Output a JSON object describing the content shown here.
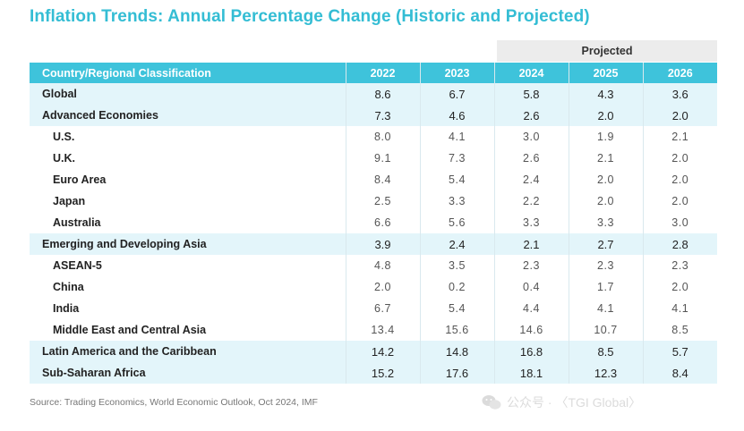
{
  "title": "Inflation Trends: Annual Percentage Change (Historic and Projected)",
  "projected_label": "Projected",
  "table": {
    "header": {
      "label": "Country/Regional Classification",
      "years": [
        "2022",
        "2023",
        "2024",
        "2025",
        "2026"
      ]
    },
    "rows": [
      {
        "label": "Global",
        "values": [
          "8.6",
          "6.7",
          "5.8",
          "4.3",
          "3.6"
        ],
        "level": "group"
      },
      {
        "label": "Advanced Economies",
        "values": [
          "7.3",
          "4.6",
          "2.6",
          "2.0",
          "2.0"
        ],
        "level": "group"
      },
      {
        "label": "U.S.",
        "values": [
          "8.0",
          "4.1",
          "3.0",
          "1.9",
          "2.1"
        ],
        "level": "sub"
      },
      {
        "label": "U.K.",
        "values": [
          "9.1",
          "7.3",
          "2.6",
          "2.1",
          "2.0"
        ],
        "level": "sub"
      },
      {
        "label": "Euro Area",
        "values": [
          "8.4",
          "5.4",
          "2.4",
          "2.0",
          "2.0"
        ],
        "level": "sub"
      },
      {
        "label": "Japan",
        "values": [
          "2.5",
          "3.3",
          "2.2",
          "2.0",
          "2.0"
        ],
        "level": "sub"
      },
      {
        "label": "Australia",
        "values": [
          "6.6",
          "5.6",
          "3.3",
          "3.3",
          "3.0"
        ],
        "level": "sub"
      },
      {
        "label": "Emerging and Developing Asia",
        "values": [
          "3.9",
          "2.4",
          "2.1",
          "2.7",
          "2.8"
        ],
        "level": "group"
      },
      {
        "label": "ASEAN-5",
        "values": [
          "4.8",
          "3.5",
          "2.3",
          "2.3",
          "2.3"
        ],
        "level": "sub"
      },
      {
        "label": "China",
        "values": [
          "2.0",
          "0.2",
          "0.4",
          "1.7",
          "2.0"
        ],
        "level": "sub"
      },
      {
        "label": "India",
        "values": [
          "6.7",
          "5.4",
          "4.4",
          "4.1",
          "4.1"
        ],
        "level": "sub"
      },
      {
        "label": "Middle East and Central Asia",
        "values": [
          "13.4",
          "15.6",
          "14.6",
          "10.7",
          "8.5"
        ],
        "level": "sub"
      },
      {
        "label": "Latin America and the Caribbean",
        "values": [
          "14.2",
          "14.8",
          "16.8",
          "8.5",
          "5.7"
        ],
        "level": "group"
      },
      {
        "label": "Sub-Saharan Africa",
        "values": [
          "15.2",
          "17.6",
          "18.1",
          "12.3",
          "8.4"
        ],
        "level": "group"
      }
    ]
  },
  "source": "Source: Trading Economics, World Economic Outlook, Oct 2024, IMF",
  "watermark": {
    "icon": "wechat-icon",
    "text": "公众号 · 〈TGI Global〉"
  },
  "colors": {
    "accent": "#3ec3db",
    "title": "#34bdd4",
    "row_highlight": "#e3f5fa",
    "projected_band": "#ececec"
  }
}
